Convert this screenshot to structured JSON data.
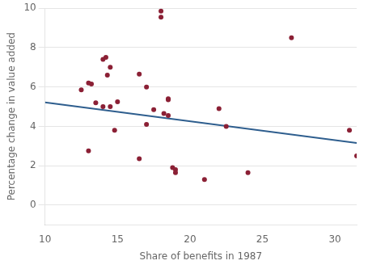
{
  "chart_data": {
    "type": "scatter",
    "x_label": "Share of benefits in 1987",
    "y_label": "Percentage change in value added",
    "xlim": [
      10,
      31.5
    ],
    "ylim": [
      -1,
      10
    ],
    "xticks": [
      10,
      15,
      20,
      25,
      30
    ],
    "yticks": [
      0,
      2,
      4,
      6,
      8,
      10
    ],
    "grid": "y",
    "series": [
      {
        "type": "scatter",
        "marker": "circle",
        "color": "#8B2035",
        "x": [
          12.5,
          13.0,
          13.0,
          13.2,
          13.5,
          14.0,
          14.0,
          14.2,
          14.3,
          14.5,
          14.5,
          14.8,
          15.0,
          16.5,
          16.5,
          17.0,
          17.0,
          17.5,
          18.0,
          18.0,
          18.2,
          18.5,
          18.5,
          18.5,
          18.8,
          19.0,
          19.0,
          21.0,
          22.0,
          22.5,
          24.0,
          27.0,
          31.0,
          31.5
        ],
        "values": [
          5.85,
          2.75,
          6.2,
          6.15,
          5.2,
          5.0,
          7.4,
          7.5,
          6.6,
          5.0,
          7.0,
          3.8,
          5.25,
          2.35,
          6.65,
          4.1,
          6.0,
          4.85,
          9.85,
          9.55,
          4.65,
          4.55,
          5.4,
          5.35,
          1.9,
          1.8,
          1.65,
          1.3,
          4.9,
          4.0,
          1.65,
          8.5,
          3.8,
          2.5
        ]
      },
      {
        "type": "line",
        "line_style": "solid",
        "color": "#2E5E8E",
        "x": [
          10,
          31.5
        ],
        "values": [
          5.22,
          3.156
        ]
      }
    ]
  }
}
